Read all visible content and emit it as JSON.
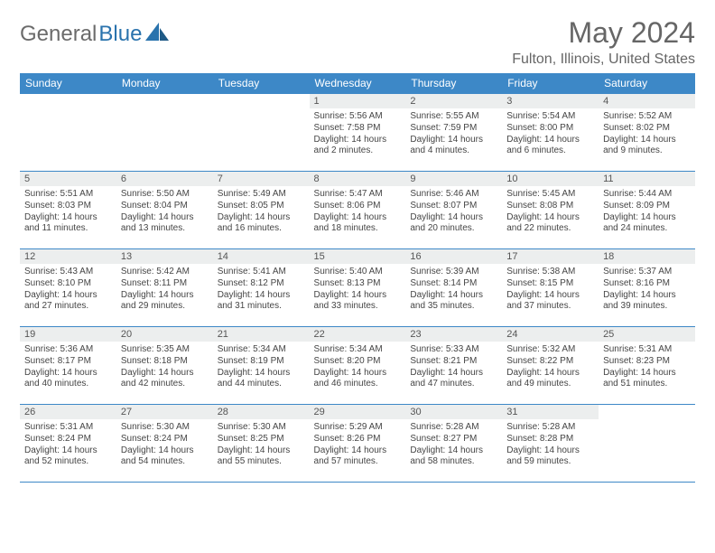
{
  "brand": {
    "word1": "General",
    "word2": "Blue",
    "accent_color": "#2a73ad",
    "text_color": "#6b6b6b"
  },
  "title": "May 2024",
  "location": "Fulton, Illinois, United States",
  "header_bg": "#3d88c7",
  "header_fg": "#ffffff",
  "daynum_bg": "#eceeee",
  "border_color": "#3d88c7",
  "day_headers": [
    "Sunday",
    "Monday",
    "Tuesday",
    "Wednesday",
    "Thursday",
    "Friday",
    "Saturday"
  ],
  "weeks": [
    [
      {
        "empty": true
      },
      {
        "empty": true
      },
      {
        "empty": true
      },
      {
        "n": "1",
        "sr": "5:56 AM",
        "ss": "7:58 PM",
        "dl": "14 hours and 2 minutes."
      },
      {
        "n": "2",
        "sr": "5:55 AM",
        "ss": "7:59 PM",
        "dl": "14 hours and 4 minutes."
      },
      {
        "n": "3",
        "sr": "5:54 AM",
        "ss": "8:00 PM",
        "dl": "14 hours and 6 minutes."
      },
      {
        "n": "4",
        "sr": "5:52 AM",
        "ss": "8:02 PM",
        "dl": "14 hours and 9 minutes."
      }
    ],
    [
      {
        "n": "5",
        "sr": "5:51 AM",
        "ss": "8:03 PM",
        "dl": "14 hours and 11 minutes."
      },
      {
        "n": "6",
        "sr": "5:50 AM",
        "ss": "8:04 PM",
        "dl": "14 hours and 13 minutes."
      },
      {
        "n": "7",
        "sr": "5:49 AM",
        "ss": "8:05 PM",
        "dl": "14 hours and 16 minutes."
      },
      {
        "n": "8",
        "sr": "5:47 AM",
        "ss": "8:06 PM",
        "dl": "14 hours and 18 minutes."
      },
      {
        "n": "9",
        "sr": "5:46 AM",
        "ss": "8:07 PM",
        "dl": "14 hours and 20 minutes."
      },
      {
        "n": "10",
        "sr": "5:45 AM",
        "ss": "8:08 PM",
        "dl": "14 hours and 22 minutes."
      },
      {
        "n": "11",
        "sr": "5:44 AM",
        "ss": "8:09 PM",
        "dl": "14 hours and 24 minutes."
      }
    ],
    [
      {
        "n": "12",
        "sr": "5:43 AM",
        "ss": "8:10 PM",
        "dl": "14 hours and 27 minutes."
      },
      {
        "n": "13",
        "sr": "5:42 AM",
        "ss": "8:11 PM",
        "dl": "14 hours and 29 minutes."
      },
      {
        "n": "14",
        "sr": "5:41 AM",
        "ss": "8:12 PM",
        "dl": "14 hours and 31 minutes."
      },
      {
        "n": "15",
        "sr": "5:40 AM",
        "ss": "8:13 PM",
        "dl": "14 hours and 33 minutes."
      },
      {
        "n": "16",
        "sr": "5:39 AM",
        "ss": "8:14 PM",
        "dl": "14 hours and 35 minutes."
      },
      {
        "n": "17",
        "sr": "5:38 AM",
        "ss": "8:15 PM",
        "dl": "14 hours and 37 minutes."
      },
      {
        "n": "18",
        "sr": "5:37 AM",
        "ss": "8:16 PM",
        "dl": "14 hours and 39 minutes."
      }
    ],
    [
      {
        "n": "19",
        "sr": "5:36 AM",
        "ss": "8:17 PM",
        "dl": "14 hours and 40 minutes."
      },
      {
        "n": "20",
        "sr": "5:35 AM",
        "ss": "8:18 PM",
        "dl": "14 hours and 42 minutes."
      },
      {
        "n": "21",
        "sr": "5:34 AM",
        "ss": "8:19 PM",
        "dl": "14 hours and 44 minutes."
      },
      {
        "n": "22",
        "sr": "5:34 AM",
        "ss": "8:20 PM",
        "dl": "14 hours and 46 minutes."
      },
      {
        "n": "23",
        "sr": "5:33 AM",
        "ss": "8:21 PM",
        "dl": "14 hours and 47 minutes."
      },
      {
        "n": "24",
        "sr": "5:32 AM",
        "ss": "8:22 PM",
        "dl": "14 hours and 49 minutes."
      },
      {
        "n": "25",
        "sr": "5:31 AM",
        "ss": "8:23 PM",
        "dl": "14 hours and 51 minutes."
      }
    ],
    [
      {
        "n": "26",
        "sr": "5:31 AM",
        "ss": "8:24 PM",
        "dl": "14 hours and 52 minutes."
      },
      {
        "n": "27",
        "sr": "5:30 AM",
        "ss": "8:24 PM",
        "dl": "14 hours and 54 minutes."
      },
      {
        "n": "28",
        "sr": "5:30 AM",
        "ss": "8:25 PM",
        "dl": "14 hours and 55 minutes."
      },
      {
        "n": "29",
        "sr": "5:29 AM",
        "ss": "8:26 PM",
        "dl": "14 hours and 57 minutes."
      },
      {
        "n": "30",
        "sr": "5:28 AM",
        "ss": "8:27 PM",
        "dl": "14 hours and 58 minutes."
      },
      {
        "n": "31",
        "sr": "5:28 AM",
        "ss": "8:28 PM",
        "dl": "14 hours and 59 minutes."
      },
      {
        "empty": true
      }
    ]
  ],
  "labels": {
    "sunrise": "Sunrise: ",
    "sunset": "Sunset: ",
    "daylight": "Daylight: "
  }
}
